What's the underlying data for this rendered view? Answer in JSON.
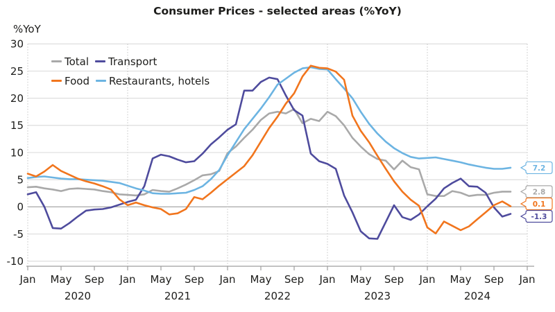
{
  "chart": {
    "title": "Consumer Prices - selected areas (%YoY)",
    "ylabel": "%YoY"
  },
  "chart_data": {
    "type": "line",
    "title": "Consumer Prices - selected areas (%YoY)",
    "ylabel": "%YoY",
    "ylim": [
      -10,
      30
    ],
    "y_ticks": [
      30,
      25,
      20,
      15,
      10,
      5,
      0,
      -5,
      -10
    ],
    "grid": "horizontal solid every 5, vertical dotted at each January, zero line darker",
    "legend_position": "top-left inside plot, two rows",
    "x_unit": "month",
    "x": [
      "2020-01",
      "2020-02",
      "2020-03",
      "2020-04",
      "2020-05",
      "2020-06",
      "2020-07",
      "2020-08",
      "2020-09",
      "2020-10",
      "2020-11",
      "2020-12",
      "2021-01",
      "2021-02",
      "2021-03",
      "2021-04",
      "2021-05",
      "2021-06",
      "2021-07",
      "2021-08",
      "2021-09",
      "2021-10",
      "2021-11",
      "2021-12",
      "2022-01",
      "2022-02",
      "2022-03",
      "2022-04",
      "2022-05",
      "2022-06",
      "2022-07",
      "2022-08",
      "2022-09",
      "2022-10",
      "2022-11",
      "2022-12",
      "2023-01",
      "2023-02",
      "2023-03",
      "2023-04",
      "2023-05",
      "2023-06",
      "2023-07",
      "2023-08",
      "2023-09",
      "2023-10",
      "2023-11",
      "2023-12",
      "2024-01",
      "2024-02",
      "2024-03",
      "2024-04",
      "2024-05",
      "2024-06",
      "2024-07",
      "2024-08",
      "2024-09",
      "2024-10",
      "2024-11"
    ],
    "x_ticks": {
      "month_labels": [
        "Jan",
        "May",
        "Sep",
        "Jan",
        "May",
        "Sep",
        "Jan",
        "May",
        "Sep",
        "Jan",
        "May",
        "Sep",
        "Jan",
        "May",
        "Sep",
        "Jan"
      ],
      "month_positions": [
        0,
        4,
        8,
        12,
        16,
        20,
        24,
        28,
        32,
        36,
        40,
        44,
        48,
        52,
        56,
        60
      ],
      "year_labels": [
        "2020",
        "2021",
        "2022",
        "2023",
        "2024"
      ],
      "year_positions": [
        6,
        18,
        30,
        42,
        54
      ]
    },
    "series": [
      {
        "name": "Total",
        "color": "#a9a9a9",
        "end_label": "2.8",
        "values": [
          3.6,
          3.7,
          3.4,
          3.2,
          2.9,
          3.3,
          3.4,
          3.3,
          3.2,
          2.9,
          2.7,
          2.3,
          2.2,
          2.1,
          2.3,
          3.1,
          2.9,
          2.8,
          3.4,
          4.1,
          4.9,
          5.8,
          6.0,
          6.6,
          9.9,
          11.1,
          12.7,
          14.2,
          16.0,
          17.2,
          17.5,
          17.2,
          18.0,
          15.4,
          16.2,
          15.8,
          17.5,
          16.7,
          15.0,
          12.7,
          11.1,
          9.7,
          8.8,
          8.5,
          6.9,
          8.5,
          7.3,
          6.9,
          2.3,
          2.0,
          2.0,
          2.9,
          2.6,
          2.0,
          2.2,
          2.2,
          2.6,
          2.8,
          2.8
        ]
      },
      {
        "name": "Transport",
        "color": "#4e4b9d",
        "end_label": "-1.3",
        "values": [
          2.3,
          2.7,
          0.0,
          -3.9,
          -4.0,
          -3.0,
          -1.8,
          -0.7,
          -0.5,
          -0.4,
          -0.1,
          0.4,
          0.9,
          1.3,
          3.8,
          8.9,
          9.6,
          9.3,
          8.7,
          8.2,
          8.4,
          9.8,
          11.5,
          12.8,
          14.2,
          15.2,
          21.4,
          21.4,
          23.0,
          23.8,
          23.5,
          20.5,
          17.8,
          16.8,
          9.8,
          8.4,
          7.9,
          7.0,
          2.1,
          -1.0,
          -4.5,
          -5.8,
          -5.9,
          -2.8,
          0.3,
          -1.9,
          -2.4,
          -1.4,
          0.1,
          1.5,
          3.4,
          4.4,
          5.2,
          3.8,
          3.7,
          2.6,
          -0.1,
          -1.8,
          -1.3
        ]
      },
      {
        "name": "Food",
        "color": "#f1751d",
        "end_label": "0.1",
        "values": [
          6.1,
          5.6,
          6.5,
          7.7,
          6.6,
          5.9,
          5.2,
          4.7,
          4.3,
          3.8,
          3.2,
          1.4,
          0.3,
          0.8,
          0.3,
          -0.1,
          -0.4,
          -1.4,
          -1.2,
          -0.4,
          1.8,
          1.4,
          2.6,
          3.9,
          5.1,
          6.3,
          7.5,
          9.5,
          12.0,
          14.5,
          16.6,
          19.0,
          20.9,
          24.0,
          26.0,
          25.6,
          25.5,
          24.9,
          23.4,
          16.8,
          14.0,
          11.9,
          9.4,
          7.0,
          4.7,
          2.8,
          1.3,
          0.2,
          -3.8,
          -4.9,
          -2.7,
          -3.5,
          -4.3,
          -3.6,
          -2.3,
          -1.0,
          0.3,
          1.0,
          0.1
        ]
      },
      {
        "name": "Restaurants, hotels",
        "color": "#6cb4e2",
        "end_label": "7.2",
        "values": [
          5.3,
          5.5,
          5.6,
          5.4,
          5.2,
          5.1,
          5.1,
          5.0,
          4.9,
          4.8,
          4.6,
          4.4,
          3.9,
          3.4,
          3.0,
          2.5,
          2.4,
          2.4,
          2.5,
          2.6,
          3.1,
          3.8,
          5.1,
          6.8,
          9.5,
          11.9,
          14.3,
          16.2,
          18.1,
          20.2,
          22.5,
          23.6,
          24.7,
          25.5,
          25.7,
          25.4,
          25.3,
          23.5,
          21.8,
          20.0,
          17.5,
          15.3,
          13.5,
          12.0,
          10.8,
          9.9,
          9.2,
          8.9,
          9.0,
          9.1,
          8.8,
          8.5,
          8.2,
          7.8,
          7.5,
          7.2,
          7.0,
          7.0,
          7.2
        ]
      }
    ],
    "legend_rows": [
      [
        0,
        1
      ],
      [
        2,
        3
      ]
    ],
    "end_labels": [
      "7.2",
      "2.8",
      "0.1",
      "-1.3"
    ]
  },
  "colors": {
    "grid": "#d9d9d9",
    "zero_line": "#9e9e9e",
    "axis": "#9e9e9e",
    "jan_dotted": "#c4c4c4",
    "tick_text": "#1d1d1b"
  }
}
